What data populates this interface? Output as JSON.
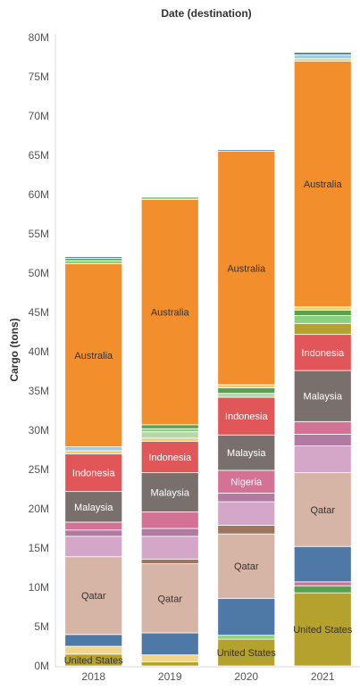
{
  "chart_data": {
    "type": "bar",
    "stacked": true,
    "title": "Date (destination)",
    "ylabel": "Cargo (tons)",
    "xlabel": "",
    "ylim": [
      0,
      80000000
    ],
    "y_ticks": [
      {
        "value": 0,
        "label": "0M"
      },
      {
        "value": 5000000,
        "label": "5M"
      },
      {
        "value": 10000000,
        "label": "10M"
      },
      {
        "value": 15000000,
        "label": "15M"
      },
      {
        "value": 20000000,
        "label": "20M"
      },
      {
        "value": 25000000,
        "label": "25M"
      },
      {
        "value": 30000000,
        "label": "30M"
      },
      {
        "value": 35000000,
        "label": "35M"
      },
      {
        "value": 40000000,
        "label": "40M"
      },
      {
        "value": 45000000,
        "label": "45M"
      },
      {
        "value": 50000000,
        "label": "50M"
      },
      {
        "value": 55000000,
        "label": "55M"
      },
      {
        "value": 60000000,
        "label": "60M"
      },
      {
        "value": 65000000,
        "label": "65M"
      },
      {
        "value": 70000000,
        "label": "70M"
      },
      {
        "value": 75000000,
        "label": "75M"
      },
      {
        "value": 80000000,
        "label": "80M"
      }
    ],
    "grid": false,
    "categories": [
      "2018",
      "2019",
      "2020",
      "2021"
    ],
    "bars": [
      {
        "category": "2018",
        "segments": [
          {
            "name": "United States",
            "value": 1500000,
            "color": "#b5a12e",
            "show_label": true
          },
          {
            "name": "",
            "value": 1000000,
            "color": "#f0d58a"
          },
          {
            "name": "",
            "value": 1500000,
            "color": "#4e79a7"
          },
          {
            "name": "Qatar",
            "value": 9900000,
            "color": "#d7b5a6",
            "show_label": true
          },
          {
            "name": "",
            "value": 2600000,
            "color": "#d4a6c8"
          },
          {
            "name": "",
            "value": 800000,
            "color": "#b07aa1"
          },
          {
            "name": "",
            "value": 1000000,
            "color": "#d37295"
          },
          {
            "name": "Malaysia",
            "value": 3900000,
            "color": "#79706e",
            "show_label": true
          },
          {
            "name": "Indonesia",
            "value": 4800000,
            "color": "#e15759",
            "show_label": true
          },
          {
            "name": "",
            "value": 400000,
            "color": "#f1ce63"
          },
          {
            "name": "",
            "value": 500000,
            "color": "#a0cbe8"
          },
          {
            "name": "Australia",
            "value": 23300000,
            "color": "#f28e2b",
            "show_label": true
          },
          {
            "name": "",
            "value": 400000,
            "color": "#8cd17d"
          },
          {
            "name": "",
            "value": 300000,
            "color": "#59a14f"
          },
          {
            "name": "",
            "value": 200000,
            "color": "#4e79a7"
          }
        ]
      },
      {
        "category": "2019",
        "segments": [
          {
            "name": "",
            "value": 500000,
            "color": "#b5a12e"
          },
          {
            "name": "",
            "value": 900000,
            "color": "#f0d58a"
          },
          {
            "name": "",
            "value": 2800000,
            "color": "#4e79a7"
          },
          {
            "name": "Qatar",
            "value": 8800000,
            "color": "#d7b5a6",
            "show_label": true
          },
          {
            "name": "",
            "value": 600000,
            "color": "#9d7660"
          },
          {
            "name": "",
            "value": 2900000,
            "color": "#d4a6c8"
          },
          {
            "name": "",
            "value": 1000000,
            "color": "#b07aa1"
          },
          {
            "name": "",
            "value": 2100000,
            "color": "#d37295"
          },
          {
            "name": "Malaysia",
            "value": 5000000,
            "color": "#79706e",
            "show_label": true
          },
          {
            "name": "Indonesia",
            "value": 4000000,
            "color": "#e15759",
            "show_label": true
          },
          {
            "name": "",
            "value": 400000,
            "color": "#f1ce63"
          },
          {
            "name": "",
            "value": 800000,
            "color": "#b6d7a8"
          },
          {
            "name": "",
            "value": 400000,
            "color": "#8cd17d"
          },
          {
            "name": "",
            "value": 500000,
            "color": "#59a14f"
          },
          {
            "name": "Australia",
            "value": 28700000,
            "color": "#f28e2b",
            "show_label": true
          },
          {
            "name": "",
            "value": 300000,
            "color": "#8cd17d"
          }
        ]
      },
      {
        "category": "2020",
        "segments": [
          {
            "name": "United States",
            "value": 3400000,
            "color": "#b5a12e",
            "show_label": true
          },
          {
            "name": "",
            "value": 500000,
            "color": "#8cd17d"
          },
          {
            "name": "",
            "value": 4700000,
            "color": "#4e79a7"
          },
          {
            "name": "Qatar",
            "value": 8200000,
            "color": "#d7b5a6",
            "show_label": true
          },
          {
            "name": "",
            "value": 1100000,
            "color": "#9d7660"
          },
          {
            "name": "",
            "value": 3000000,
            "color": "#d4a6c8"
          },
          {
            "name": "",
            "value": 1100000,
            "color": "#b07aa1"
          },
          {
            "name": "Nigeria",
            "value": 2900000,
            "color": "#d37295",
            "show_label": true
          },
          {
            "name": "Malaysia",
            "value": 4500000,
            "color": "#79706e",
            "show_label": true
          },
          {
            "name": "Indonesia",
            "value": 4800000,
            "color": "#e15759",
            "show_label": true
          },
          {
            "name": "",
            "value": 500000,
            "color": "#b6d7a8"
          },
          {
            "name": "",
            "value": 700000,
            "color": "#59a14f"
          },
          {
            "name": "",
            "value": 400000,
            "color": "#f1ce63"
          },
          {
            "name": "Australia",
            "value": 29700000,
            "color": "#f28e2b",
            "show_label": true
          },
          {
            "name": "",
            "value": 200000,
            "color": "#4e79a7"
          }
        ]
      },
      {
        "category": "2021",
        "segments": [
          {
            "name": "United States",
            "value": 9300000,
            "color": "#b5a12e",
            "show_label": true
          },
          {
            "name": "",
            "value": 900000,
            "color": "#59a14f"
          },
          {
            "name": "",
            "value": 500000,
            "color": "#d37295"
          },
          {
            "name": "",
            "value": 4500000,
            "color": "#4e79a7"
          },
          {
            "name": "Qatar",
            "value": 9400000,
            "color": "#d7b5a6",
            "show_label": true
          },
          {
            "name": "",
            "value": 3400000,
            "color": "#d4a6c8"
          },
          {
            "name": "",
            "value": 1500000,
            "color": "#b07aa1"
          },
          {
            "name": "",
            "value": 1600000,
            "color": "#d37295"
          },
          {
            "name": "Malaysia",
            "value": 6500000,
            "color": "#79706e",
            "show_label": true
          },
          {
            "name": "Indonesia",
            "value": 4600000,
            "color": "#e15759",
            "show_label": true
          },
          {
            "name": "",
            "value": 1400000,
            "color": "#b5a12e"
          },
          {
            "name": "",
            "value": 1000000,
            "color": "#8cd17d"
          },
          {
            "name": "",
            "value": 700000,
            "color": "#59a14f"
          },
          {
            "name": "",
            "value": 400000,
            "color": "#f1ce63"
          },
          {
            "name": "Australia",
            "value": 31300000,
            "color": "#f28e2b",
            "show_label": true
          },
          {
            "name": "",
            "value": 300000,
            "color": "#f1ce63"
          },
          {
            "name": "",
            "value": 500000,
            "color": "#a0cbe8"
          },
          {
            "name": "",
            "value": 300000,
            "color": "#4e79a7"
          }
        ]
      }
    ],
    "label_colors": {
      "on_dark": "#ffffff",
      "on_light": "#333333"
    },
    "axis_colors": {
      "tick_text": "#555555",
      "axis_line": "#d9d9d9",
      "title_text": "#333333"
    }
  }
}
